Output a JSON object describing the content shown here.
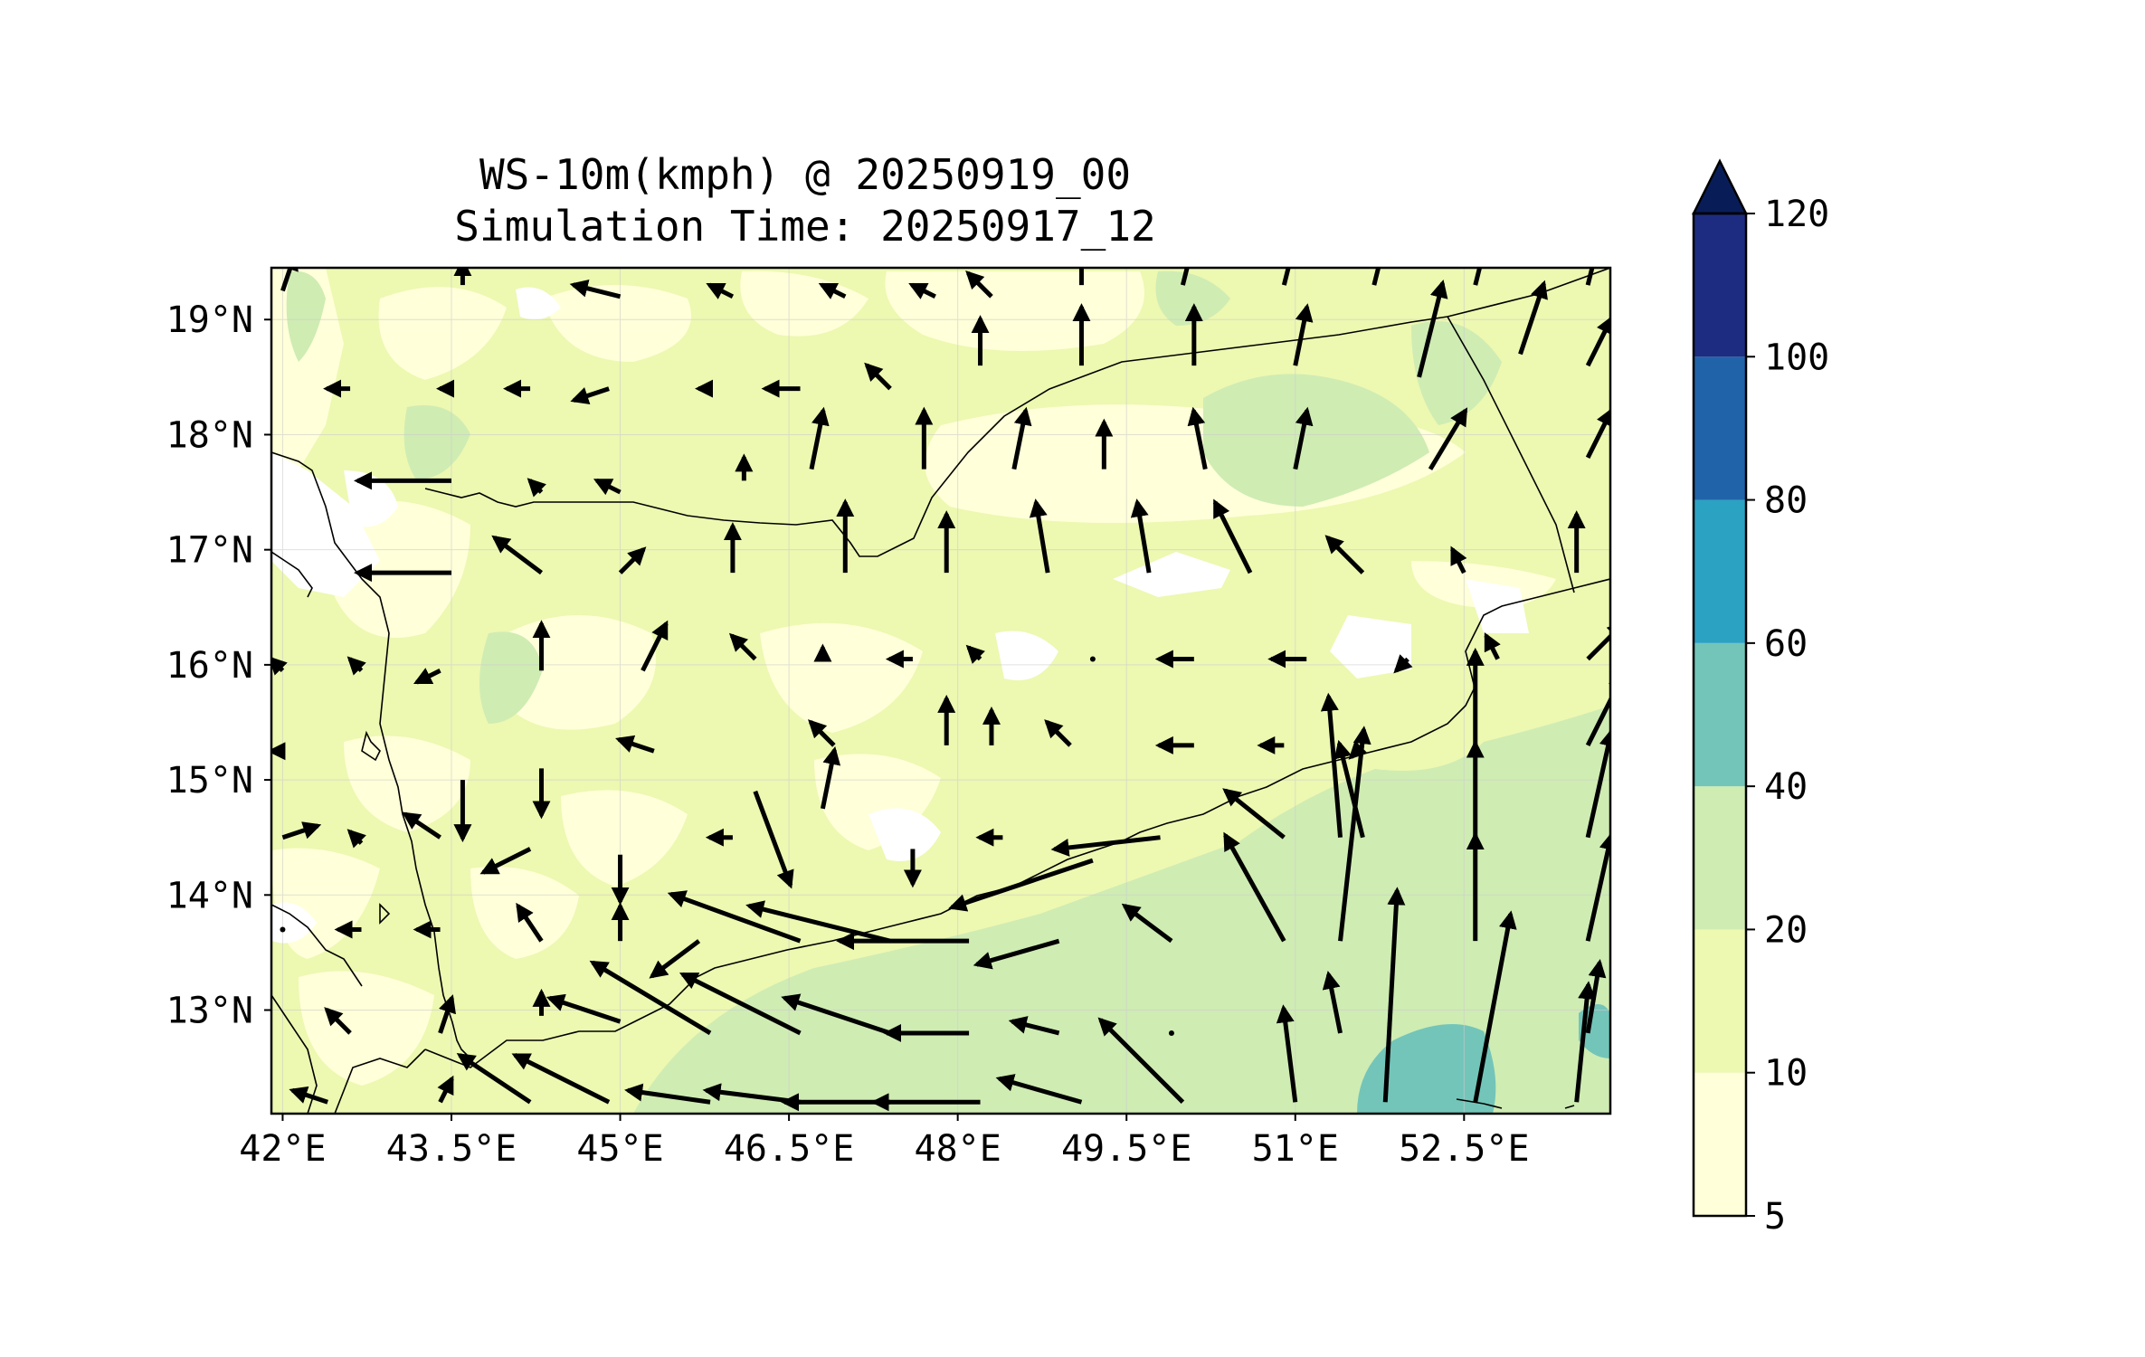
{
  "title": {
    "line1": "WS-10m(kmph) @ 20250919_00",
    "line2": "Simulation Time: 20250917_12"
  },
  "map": {
    "lon_range": [
      41.9,
      53.8
    ],
    "lat_range": [
      12.1,
      19.45
    ],
    "x_ticks": [
      {
        "value": 42.0,
        "label": "42°E"
      },
      {
        "value": 43.5,
        "label": "43.5°E"
      },
      {
        "value": 45.0,
        "label": "45°E"
      },
      {
        "value": 46.5,
        "label": "46.5°E"
      },
      {
        "value": 48.0,
        "label": "48°E"
      },
      {
        "value": 49.5,
        "label": "49.5°E"
      },
      {
        "value": 51.0,
        "label": "51°E"
      },
      {
        "value": 52.5,
        "label": "52.5°E"
      }
    ],
    "y_ticks": [
      {
        "value": 13,
        "label": "13°N"
      },
      {
        "value": 14,
        "label": "14°N"
      },
      {
        "value": 15,
        "label": "15°N"
      },
      {
        "value": 16,
        "label": "16°N"
      },
      {
        "value": 17,
        "label": "17°N"
      },
      {
        "value": 18,
        "label": "18°N"
      },
      {
        "value": 19,
        "label": "19°N"
      }
    ],
    "gridlines": true
  },
  "colorbar": {
    "levels": [
      {
        "label": "5",
        "value": 5,
        "color": "#ffffd9"
      },
      {
        "label": "10",
        "value": 10,
        "color": "#edf8b1"
      },
      {
        "label": "20",
        "value": 20,
        "color": "#cfecb3"
      },
      {
        "label": "40",
        "value": 40,
        "color": "#73c5b9"
      },
      {
        "label": "60",
        "value": 60,
        "color": "#2ca2c3"
      },
      {
        "label": "80",
        "value": 80,
        "color": "#2163a8"
      },
      {
        "label": "100",
        "value": 100,
        "color": "#1d2c80"
      },
      {
        "label": "120",
        "value": 120,
        "color": "#081d58"
      }
    ],
    "extend": "max"
  },
  "wind_vectors": [
    {
      "lon": 42.0,
      "lat": 19.25,
      "u": 1,
      "v": 3
    },
    {
      "lon": 43.6,
      "lat": 19.3,
      "u": 0,
      "v": 2
    },
    {
      "lon": 45.0,
      "lat": 19.2,
      "u": -4,
      "v": 1
    },
    {
      "lon": 46.0,
      "lat": 19.2,
      "u": -2,
      "v": 1
    },
    {
      "lon": 47.0,
      "lat": 19.2,
      "u": -2,
      "v": 1
    },
    {
      "lon": 47.8,
      "lat": 19.2,
      "u": -2,
      "v": 1
    },
    {
      "lon": 48.3,
      "lat": 19.2,
      "u": -2,
      "v": 2
    },
    {
      "lon": 49.1,
      "lat": 19.3,
      "u": 0,
      "v": 4
    },
    {
      "lon": 50.0,
      "lat": 19.3,
      "u": 1,
      "v": 4
    },
    {
      "lon": 50.9,
      "lat": 19.3,
      "u": 1,
      "v": 4
    },
    {
      "lon": 51.7,
      "lat": 19.3,
      "u": 1,
      "v": 4
    },
    {
      "lon": 52.6,
      "lat": 19.3,
      "u": 1,
      "v": 4
    },
    {
      "lon": 53.6,
      "lat": 19.3,
      "u": 1,
      "v": 4
    },
    {
      "lon": 42.6,
      "lat": 18.4,
      "u": -2,
      "v": 0
    },
    {
      "lon": 43.5,
      "lat": 18.4,
      "u": -1,
      "v": 0
    },
    {
      "lon": 44.2,
      "lat": 18.4,
      "u": -2,
      "v": 0
    },
    {
      "lon": 44.9,
      "lat": 18.4,
      "u": -3,
      "v": -1
    },
    {
      "lon": 45.8,
      "lat": 18.4,
      "u": -1,
      "v": 0
    },
    {
      "lon": 46.6,
      "lat": 18.4,
      "u": -3,
      "v": 0
    },
    {
      "lon": 47.4,
      "lat": 18.4,
      "u": -2,
      "v": 2
    },
    {
      "lon": 48.2,
      "lat": 18.6,
      "u": 0,
      "v": 4
    },
    {
      "lon": 49.1,
      "lat": 18.6,
      "u": 0,
      "v": 5
    },
    {
      "lon": 50.1,
      "lat": 18.6,
      "u": 0,
      "v": 5
    },
    {
      "lon": 51.0,
      "lat": 18.6,
      "u": 1,
      "v": 5
    },
    {
      "lon": 52.1,
      "lat": 18.5,
      "u": 2,
      "v": 8
    },
    {
      "lon": 53.0,
      "lat": 18.7,
      "u": 2,
      "v": 6
    },
    {
      "lon": 53.6,
      "lat": 18.6,
      "u": 2,
      "v": 4
    },
    {
      "lon": 43.5,
      "lat": 17.6,
      "u": -8,
      "v": 0
    },
    {
      "lon": 44.3,
      "lat": 17.5,
      "u": -1,
      "v": 1
    },
    {
      "lon": 45.0,
      "lat": 17.5,
      "u": -2,
      "v": 1
    },
    {
      "lon": 46.1,
      "lat": 17.6,
      "u": 0,
      "v": 2
    },
    {
      "lon": 46.7,
      "lat": 17.7,
      "u": 1,
      "v": 5
    },
    {
      "lon": 47.7,
      "lat": 17.7,
      "u": 0,
      "v": 5
    },
    {
      "lon": 48.5,
      "lat": 17.7,
      "u": 1,
      "v": 5
    },
    {
      "lon": 49.3,
      "lat": 17.7,
      "u": 0,
      "v": 4
    },
    {
      "lon": 50.2,
      "lat": 17.7,
      "u": -1,
      "v": 5
    },
    {
      "lon": 51.0,
      "lat": 17.7,
      "u": 1,
      "v": 5
    },
    {
      "lon": 52.2,
      "lat": 17.7,
      "u": 3,
      "v": 5
    },
    {
      "lon": 53.6,
      "lat": 17.8,
      "u": 2,
      "v": 4
    },
    {
      "lon": 43.5,
      "lat": 16.8,
      "u": -8,
      "v": 0
    },
    {
      "lon": 44.3,
      "lat": 16.8,
      "u": -4,
      "v": 3
    },
    {
      "lon": 45.0,
      "lat": 16.8,
      "u": 2,
      "v": 2
    },
    {
      "lon": 46.0,
      "lat": 16.8,
      "u": 0,
      "v": 4
    },
    {
      "lon": 47.0,
      "lat": 16.8,
      "u": 0,
      "v": 6
    },
    {
      "lon": 47.9,
      "lat": 16.8,
      "u": 0,
      "v": 5
    },
    {
      "lon": 48.8,
      "lat": 16.8,
      "u": -1,
      "v": 6
    },
    {
      "lon": 49.7,
      "lat": 16.8,
      "u": -1,
      "v": 6
    },
    {
      "lon": 50.6,
      "lat": 16.8,
      "u": -3,
      "v": 6
    },
    {
      "lon": 51.6,
      "lat": 16.8,
      "u": -3,
      "v": 3
    },
    {
      "lon": 52.5,
      "lat": 16.8,
      "u": -1,
      "v": 2
    },
    {
      "lon": 53.5,
      "lat": 16.8,
      "u": 0,
      "v": 5
    },
    {
      "lon": 42.0,
      "lat": 15.95,
      "u": -1,
      "v": 1
    },
    {
      "lon": 42.7,
      "lat": 15.95,
      "u": -1,
      "v": 1
    },
    {
      "lon": 43.4,
      "lat": 15.95,
      "u": -2,
      "v": -1
    },
    {
      "lon": 44.3,
      "lat": 15.95,
      "u": 0,
      "v": 4
    },
    {
      "lon": 45.2,
      "lat": 15.95,
      "u": 2,
      "v": 4
    },
    {
      "lon": 46.2,
      "lat": 16.05,
      "u": -2,
      "v": 2
    },
    {
      "lon": 46.8,
      "lat": 16.05,
      "u": 0,
      "v": 1
    },
    {
      "lon": 47.6,
      "lat": 16.05,
      "u": -2,
      "v": 0
    },
    {
      "lon": 48.2,
      "lat": 16.05,
      "u": -1,
      "v": 1
    },
    {
      "lon": 49.2,
      "lat": 16.05,
      "u": 0,
      "v": 0
    },
    {
      "lon": 50.1,
      "lat": 16.05,
      "u": -3,
      "v": 0
    },
    {
      "lon": 51.1,
      "lat": 16.05,
      "u": -3,
      "v": 0
    },
    {
      "lon": 52.0,
      "lat": 16.05,
      "u": -1,
      "v": -1
    },
    {
      "lon": 52.8,
      "lat": 16.05,
      "u": -1,
      "v": 2
    },
    {
      "lon": 53.6,
      "lat": 16.05,
      "u": 3,
      "v": 3
    },
    {
      "lon": 42.0,
      "lat": 15.25,
      "u": -1,
      "v": 0
    },
    {
      "lon": 43.6,
      "lat": 15.0,
      "u": 0,
      "v": -5
    },
    {
      "lon": 44.3,
      "lat": 15.1,
      "u": 0,
      "v": -4
    },
    {
      "lon": 45.3,
      "lat": 15.25,
      "u": -3,
      "v": 1
    },
    {
      "lon": 46.2,
      "lat": 14.9,
      "u": 3,
      "v": -8
    },
    {
      "lon": 46.9,
      "lat": 15.3,
      "u": -2,
      "v": 2
    },
    {
      "lon": 47.9,
      "lat": 15.3,
      "u": 0,
      "v": 4
    },
    {
      "lon": 48.3,
      "lat": 15.3,
      "u": 0,
      "v": 3
    },
    {
      "lon": 49.0,
      "lat": 15.3,
      "u": -2,
      "v": 2
    },
    {
      "lon": 50.1,
      "lat": 15.3,
      "u": -3,
      "v": 0
    },
    {
      "lon": 50.9,
      "lat": 15.3,
      "u": -2,
      "v": 0
    },
    {
      "lon": 51.6,
      "lat": 15.3,
      "u": -1,
      "v": -1
    },
    {
      "lon": 52.6,
      "lat": 15.3,
      "u": 0,
      "v": 8
    },
    {
      "lon": 53.6,
      "lat": 15.3,
      "u": 3,
      "v": 6
    },
    {
      "lon": 42.0,
      "lat": 14.5,
      "u": 3,
      "v": 1
    },
    {
      "lon": 42.7,
      "lat": 14.45,
      "u": -1,
      "v": 1
    },
    {
      "lon": 43.4,
      "lat": 14.5,
      "u": -3,
      "v": 2
    },
    {
      "lon": 44.2,
      "lat": 14.4,
      "u": -4,
      "v": -2
    },
    {
      "lon": 45.0,
      "lat": 14.35,
      "u": 0,
      "v": -4
    },
    {
      "lon": 46.0,
      "lat": 14.5,
      "u": -2,
      "v": 0
    },
    {
      "lon": 46.8,
      "lat": 14.75,
      "u": 1,
      "v": 5
    },
    {
      "lon": 47.6,
      "lat": 14.4,
      "u": 0,
      "v": -3
    },
    {
      "lon": 48.4,
      "lat": 14.5,
      "u": -2,
      "v": 0
    },
    {
      "lon": 49.2,
      "lat": 14.3,
      "u": -12,
      "v": -4
    },
    {
      "lon": 49.8,
      "lat": 14.5,
      "u": -9,
      "v": -1
    },
    {
      "lon": 50.9,
      "lat": 14.5,
      "u": -5,
      "v": 4
    },
    {
      "lon": 51.4,
      "lat": 14.5,
      "u": -1,
      "v": 12
    },
    {
      "lon": 51.6,
      "lat": 14.5,
      "u": -2,
      "v": 8
    },
    {
      "lon": 52.6,
      "lat": 14.5,
      "u": 0,
      "v": 8
    },
    {
      "lon": 53.6,
      "lat": 14.5,
      "u": 2,
      "v": 9
    },
    {
      "lon": 42.0,
      "lat": 13.7,
      "u": 0,
      "v": 0
    },
    {
      "lon": 42.7,
      "lat": 13.7,
      "u": -2,
      "v": 0
    },
    {
      "lon": 43.4,
      "lat": 13.7,
      "u": -2,
      "v": 0
    },
    {
      "lon": 44.3,
      "lat": 13.6,
      "u": -2,
      "v": 3
    },
    {
      "lon": 45.0,
      "lat": 13.6,
      "u": 0,
      "v": 3
    },
    {
      "lon": 45.7,
      "lat": 13.6,
      "u": -4,
      "v": -3
    },
    {
      "lon": 46.6,
      "lat": 13.6,
      "u": -11,
      "v": 4
    },
    {
      "lon": 47.4,
      "lat": 13.6,
      "u": -12,
      "v": 3
    },
    {
      "lon": 48.1,
      "lat": 13.6,
      "u": -11,
      "v": 0
    },
    {
      "lon": 48.9,
      "lat": 13.6,
      "u": -7,
      "v": -2
    },
    {
      "lon": 49.9,
      "lat": 13.6,
      "u": -4,
      "v": 3
    },
    {
      "lon": 50.9,
      "lat": 13.6,
      "u": -5,
      "v": 9
    },
    {
      "lon": 51.4,
      "lat": 13.6,
      "u": 2,
      "v": 18
    },
    {
      "lon": 52.6,
      "lat": 13.6,
      "u": 0,
      "v": 9
    },
    {
      "lon": 53.6,
      "lat": 13.6,
      "u": 2,
      "v": 9
    },
    {
      "lon": 42.6,
      "lat": 12.8,
      "u": -2,
      "v": 2
    },
    {
      "lon": 43.4,
      "lat": 12.8,
      "u": 1,
      "v": 3
    },
    {
      "lon": 44.3,
      "lat": 12.95,
      "u": 0,
      "v": 2
    },
    {
      "lon": 45.0,
      "lat": 12.9,
      "u": -6,
      "v": 2
    },
    {
      "lon": 45.8,
      "lat": 12.8,
      "u": -10,
      "v": 6
    },
    {
      "lon": 46.6,
      "lat": 12.8,
      "u": -10,
      "v": 5
    },
    {
      "lon": 47.4,
      "lat": 12.8,
      "u": -9,
      "v": 3
    },
    {
      "lon": 48.1,
      "lat": 12.8,
      "u": -7,
      "v": 0
    },
    {
      "lon": 48.9,
      "lat": 12.8,
      "u": -4,
      "v": 1
    },
    {
      "lon": 49.9,
      "lat": 12.8,
      "u": 0,
      "v": 0
    },
    {
      "lon": 51.4,
      "lat": 12.8,
      "u": -1,
      "v": 5
    },
    {
      "lon": 53.6,
      "lat": 12.8,
      "u": 1,
      "v": 6
    },
    {
      "lon": 42.4,
      "lat": 12.2,
      "u": -3,
      "v": 1
    },
    {
      "lon": 43.4,
      "lat": 12.2,
      "u": 1,
      "v": 2
    },
    {
      "lon": 44.2,
      "lat": 12.2,
      "u": -6,
      "v": 4
    },
    {
      "lon": 44.9,
      "lat": 12.2,
      "u": -8,
      "v": 4
    },
    {
      "lon": 45.8,
      "lat": 12.2,
      "u": -7,
      "v": 1
    },
    {
      "lon": 46.6,
      "lat": 12.2,
      "u": -8,
      "v": 1
    },
    {
      "lon": 47.4,
      "lat": 12.2,
      "u": -9,
      "v": 0
    },
    {
      "lon": 48.2,
      "lat": 12.2,
      "u": -9,
      "v": 0
    },
    {
      "lon": 49.1,
      "lat": 12.2,
      "u": -7,
      "v": 2
    },
    {
      "lon": 50.0,
      "lat": 12.2,
      "u": -7,
      "v": 7
    },
    {
      "lon": 51.0,
      "lat": 12.2,
      "u": -1,
      "v": 8
    },
    {
      "lon": 51.8,
      "lat": 12.2,
      "u": 1,
      "v": 18
    },
    {
      "lon": 52.6,
      "lat": 12.2,
      "u": 3,
      "v": 16
    },
    {
      "lon": 53.5,
      "lat": 12.2,
      "u": 1,
      "v": 10
    }
  ]
}
